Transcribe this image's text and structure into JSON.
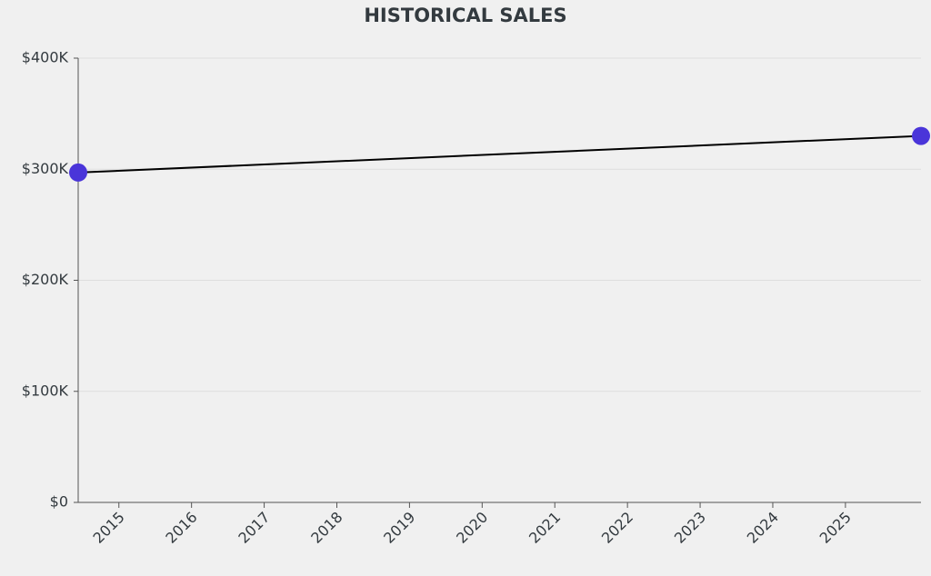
{
  "chart_data": {
    "type": "line",
    "title": "HISTORICAL SALES",
    "x": [
      2014.44,
      2026.04
    ],
    "series": [
      {
        "values": [
          297000,
          330000
        ],
        "color": "#4a35d9",
        "line_color": "#000000"
      }
    ],
    "xlim": [
      2014.44,
      2026.04
    ],
    "xticks": [
      2015,
      2016,
      2017,
      2018,
      2019,
      2020,
      2021,
      2022,
      2023,
      2024,
      2025
    ],
    "ylim": [
      0,
      400000
    ],
    "yticks": [
      {
        "value": 0,
        "label": "$0"
      },
      {
        "value": 100000,
        "label": "$100K"
      },
      {
        "value": 200000,
        "label": "$200K"
      },
      {
        "value": 300000,
        "label": "$300K"
      },
      {
        "value": 400000,
        "label": "$400K"
      }
    ],
    "grid": true
  }
}
